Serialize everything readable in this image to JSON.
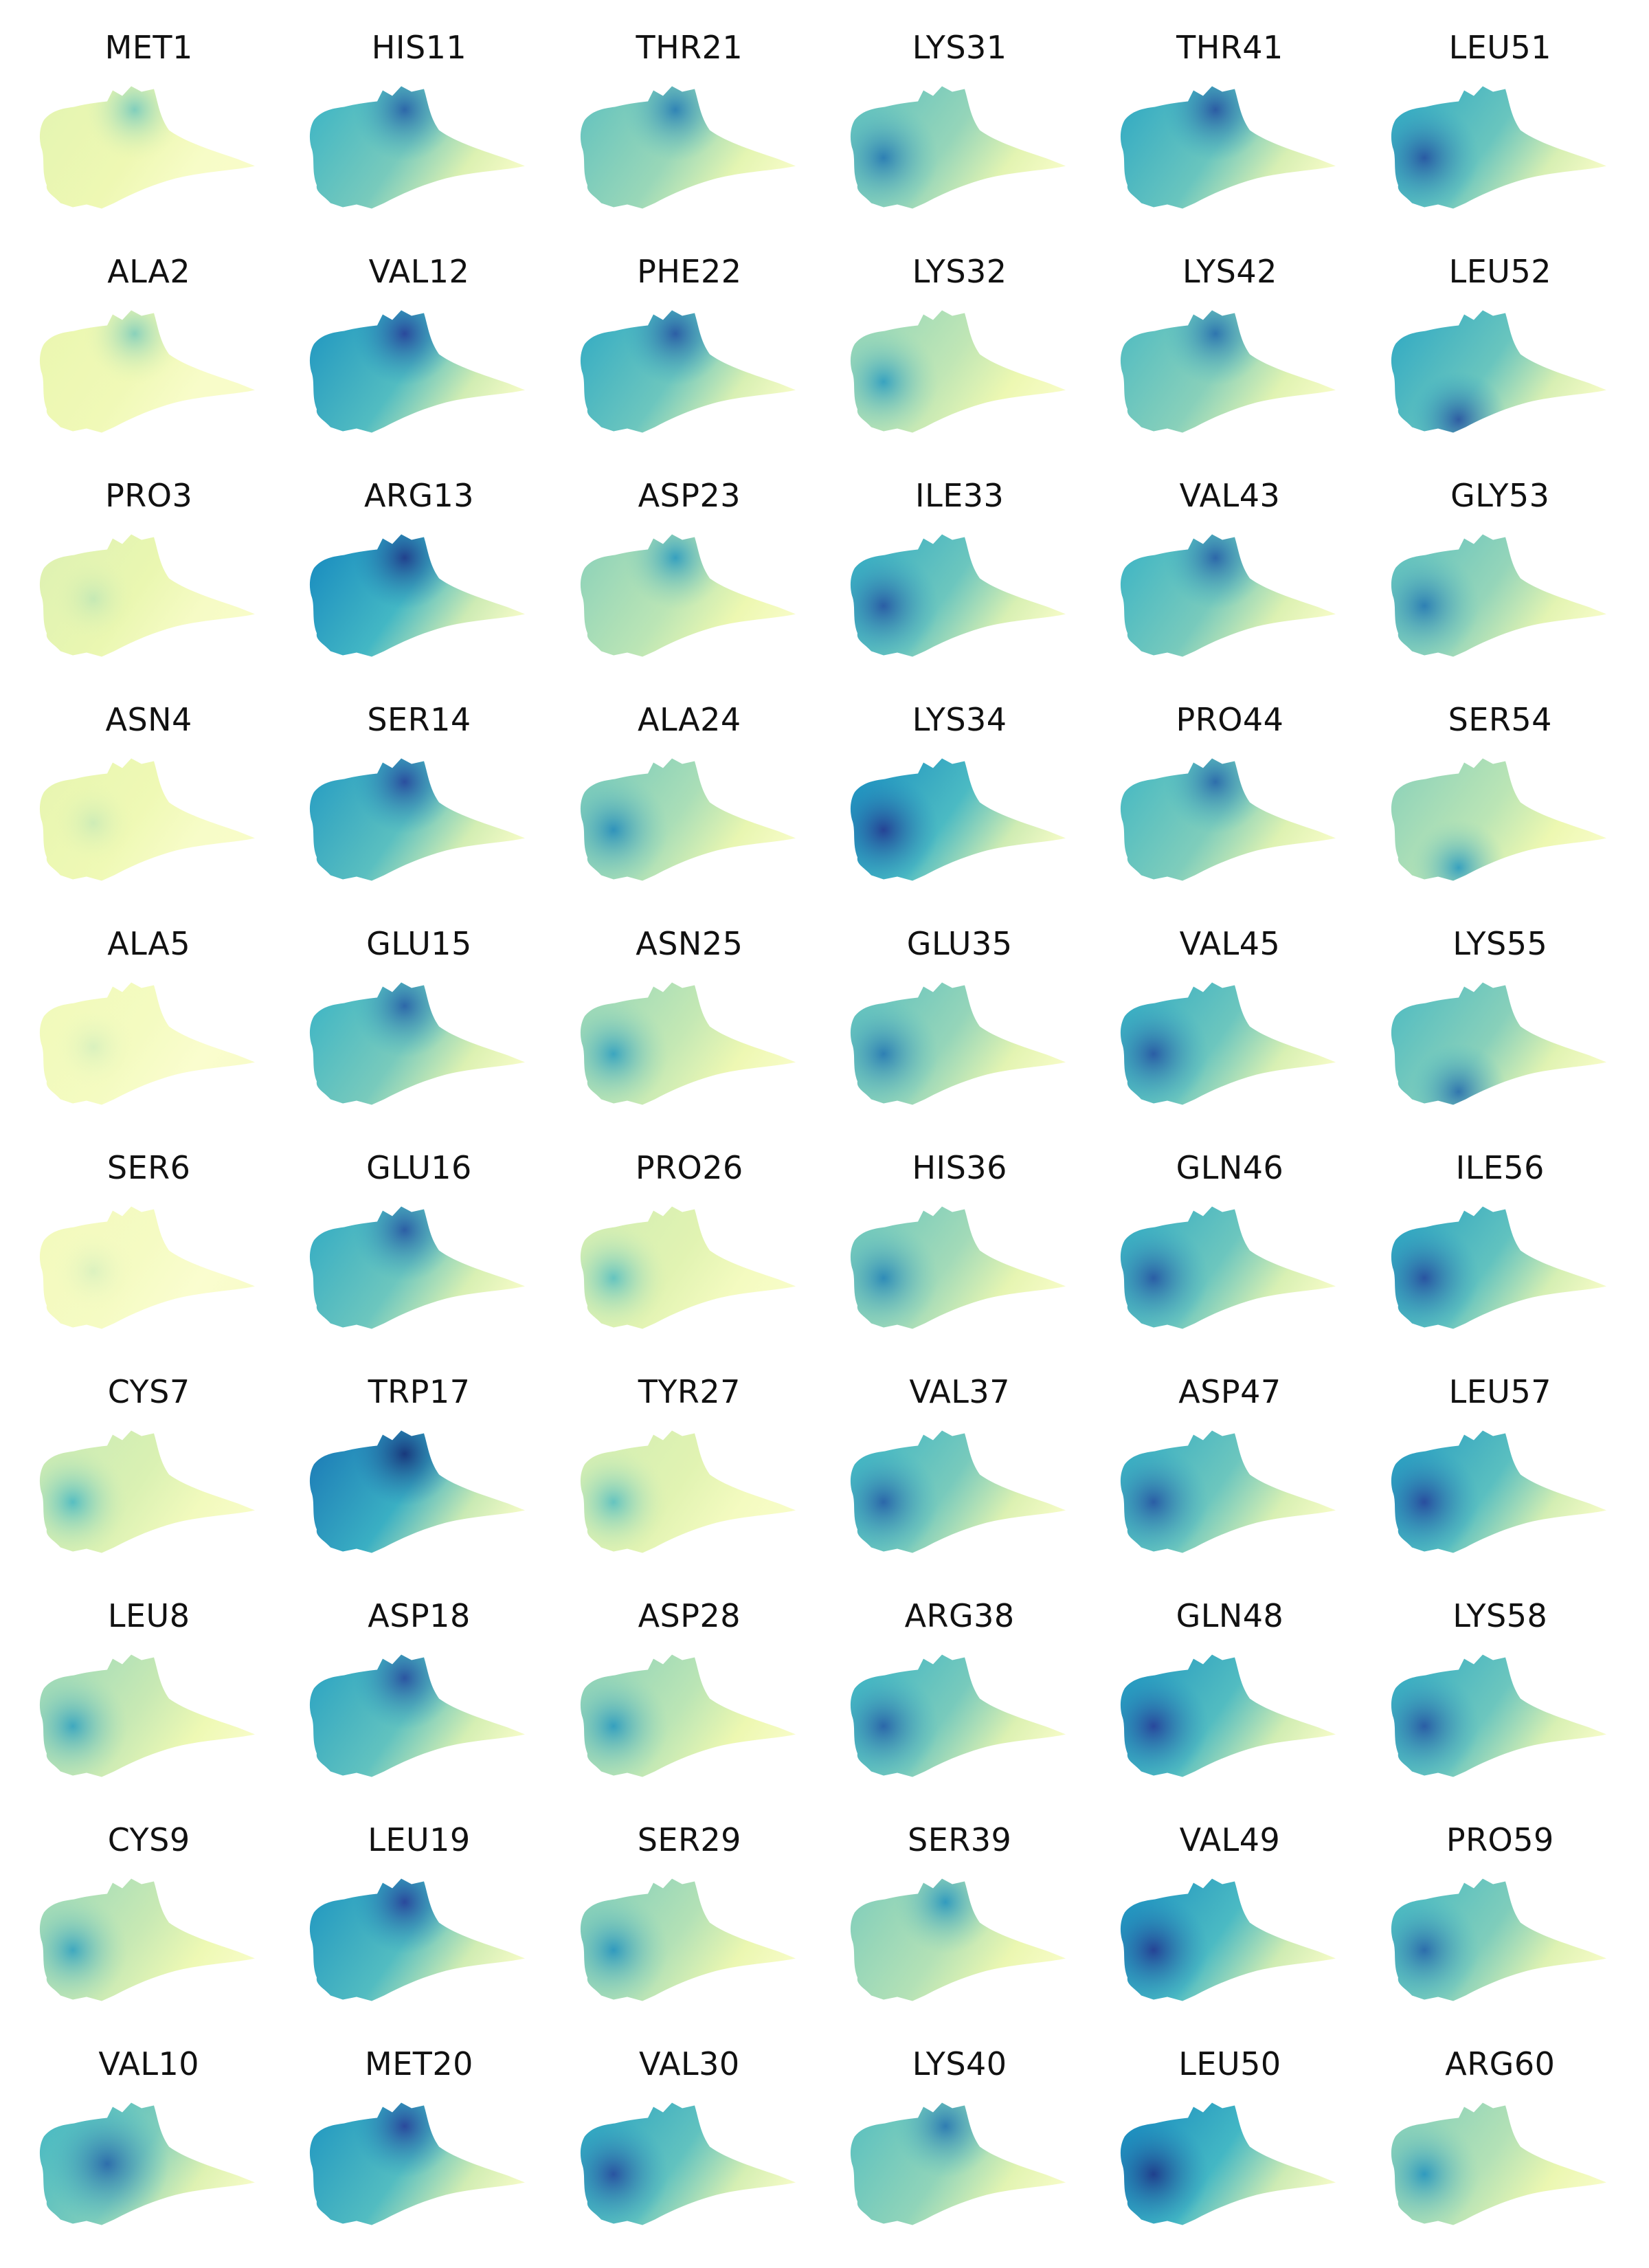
{
  "chart_data": {
    "type": "scatter",
    "layout": {
      "rows": 10,
      "cols": 6,
      "order": "column-major"
    },
    "colormap": [
      "#ffffd9",
      "#edf8b1",
      "#c7e9b4",
      "#7fcdbb",
      "#41b6c4",
      "#1d91c0",
      "#225ea8",
      "#253494",
      "#081d58"
    ],
    "grid": false,
    "axes_visible": false,
    "panels": [
      {
        "title": "MET1",
        "level": 0.16,
        "hot": "top"
      },
      {
        "title": "ALA2",
        "level": 0.14,
        "hot": "top"
      },
      {
        "title": "PRO3",
        "level": 0.18,
        "hot": "none"
      },
      {
        "title": "ASN4",
        "level": 0.15,
        "hot": "none"
      },
      {
        "title": "ALA5",
        "level": 0.1,
        "hot": "none"
      },
      {
        "title": "SER6",
        "level": 0.09,
        "hot": "none"
      },
      {
        "title": "CYS7",
        "level": 0.25,
        "hot": "left"
      },
      {
        "title": "LEU8",
        "level": 0.33,
        "hot": "left"
      },
      {
        "title": "CYS9",
        "level": 0.33,
        "hot": "left"
      },
      {
        "title": "VAL10",
        "level": 0.5,
        "hot": "center"
      },
      {
        "title": "HIS11",
        "level": 0.52,
        "hot": "top"
      },
      {
        "title": "VAL12",
        "level": 0.62,
        "hot": "top"
      },
      {
        "title": "ARG13",
        "level": 0.66,
        "hot": "top"
      },
      {
        "title": "SER14",
        "level": 0.6,
        "hot": "top"
      },
      {
        "title": "GLU15",
        "level": 0.52,
        "hot": "top"
      },
      {
        "title": "GLU16",
        "level": 0.55,
        "hot": "top"
      },
      {
        "title": "TRP17",
        "level": 0.7,
        "hot": "top"
      },
      {
        "title": "ASP18",
        "level": 0.58,
        "hot": "top"
      },
      {
        "title": "LEU19",
        "level": 0.62,
        "hot": "top"
      },
      {
        "title": "MET20",
        "level": 0.62,
        "hot": "top"
      },
      {
        "title": "THR21",
        "level": 0.44,
        "hot": "top"
      },
      {
        "title": "PHE22",
        "level": 0.55,
        "hot": "top"
      },
      {
        "title": "ASP23",
        "level": 0.36,
        "hot": "top"
      },
      {
        "title": "ALA24",
        "level": 0.4,
        "hot": "left"
      },
      {
        "title": "ASN25",
        "level": 0.34,
        "hot": "left"
      },
      {
        "title": "PRO26",
        "level": 0.22,
        "hot": "left"
      },
      {
        "title": "TYR27",
        "level": 0.22,
        "hot": "left"
      },
      {
        "title": "ASP28",
        "level": 0.36,
        "hot": "left"
      },
      {
        "title": "SER29",
        "level": 0.38,
        "hot": "left"
      },
      {
        "title": "VAL30",
        "level": 0.58,
        "hot": "left"
      },
      {
        "title": "LYS31",
        "level": 0.45,
        "hot": "left"
      },
      {
        "title": "LYS32",
        "level": 0.35,
        "hot": "left"
      },
      {
        "title": "ILE33",
        "level": 0.55,
        "hot": "left"
      },
      {
        "title": "LYS34",
        "level": 0.64,
        "hot": "left"
      },
      {
        "title": "GLU35",
        "level": 0.45,
        "hot": "left"
      },
      {
        "title": "HIS36",
        "level": 0.42,
        "hot": "left"
      },
      {
        "title": "VAL37",
        "level": 0.52,
        "hot": "left"
      },
      {
        "title": "ARG38",
        "level": 0.52,
        "hot": "left"
      },
      {
        "title": "SER39",
        "level": 0.38,
        "hot": "top"
      },
      {
        "title": "LYS40",
        "level": 0.46,
        "hot": "top"
      },
      {
        "title": "THR41",
        "level": 0.56,
        "hot": "top"
      },
      {
        "title": "LYS42",
        "level": 0.48,
        "hot": "top"
      },
      {
        "title": "VAL43",
        "level": 0.52,
        "hot": "top"
      },
      {
        "title": "PRO44",
        "level": 0.5,
        "hot": "top"
      },
      {
        "title": "VAL45",
        "level": 0.55,
        "hot": "left"
      },
      {
        "title": "GLN46",
        "level": 0.55,
        "hot": "left"
      },
      {
        "title": "ASP47",
        "level": 0.55,
        "hot": "left"
      },
      {
        "title": "GLN48",
        "level": 0.62,
        "hot": "left"
      },
      {
        "title": "VAL49",
        "level": 0.64,
        "hot": "left"
      },
      {
        "title": "LEU50",
        "level": 0.66,
        "hot": "left"
      },
      {
        "title": "LEU51",
        "level": 0.56,
        "hot": "left"
      },
      {
        "title": "LEU52",
        "level": 0.56,
        "hot": "bottom"
      },
      {
        "title": "GLY53",
        "level": 0.45,
        "hot": "left"
      },
      {
        "title": "SER54",
        "level": 0.36,
        "hot": "bottom"
      },
      {
        "title": "LYS55",
        "level": 0.48,
        "hot": "bottom"
      },
      {
        "title": "ILE56",
        "level": 0.58,
        "hot": "left"
      },
      {
        "title": "LEU57",
        "level": 0.6,
        "hot": "left"
      },
      {
        "title": "LYS58",
        "level": 0.55,
        "hot": "left"
      },
      {
        "title": "PRO59",
        "level": 0.5,
        "hot": "left"
      },
      {
        "title": "ARG60",
        "level": 0.38,
        "hot": "left"
      }
    ]
  }
}
